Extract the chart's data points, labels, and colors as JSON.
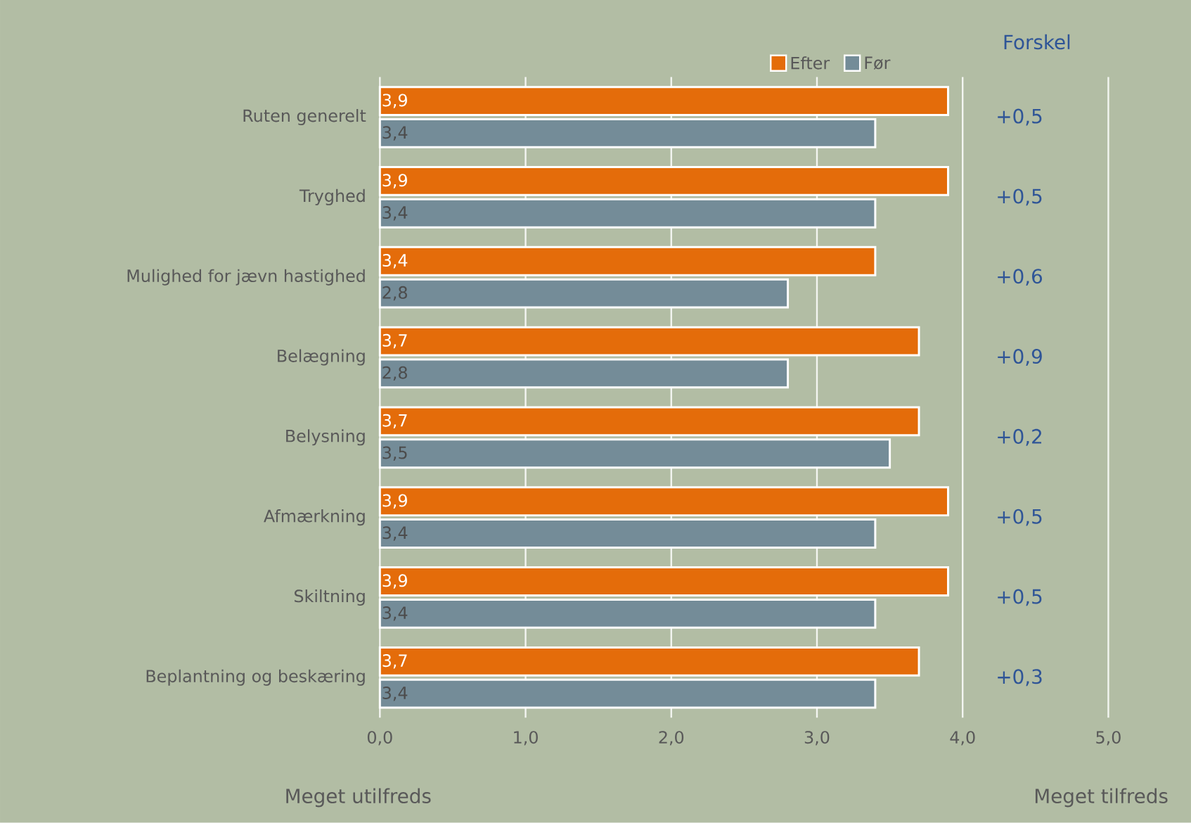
{
  "chart_data": {
    "type": "bar",
    "orientation": "horizontal",
    "categories": [
      "Ruten generelt",
      "Tryghed",
      "Mulighed for jævn hastighed",
      "Belægning",
      "Belysning",
      "Afmærkning",
      "Skiltning",
      "Beplantning og beskæring"
    ],
    "series": [
      {
        "name": "Efter",
        "color": "#e46c0a",
        "values": [
          3.9,
          3.9,
          3.4,
          3.7,
          3.7,
          3.9,
          3.9,
          3.7
        ],
        "value_labels": [
          "3,9",
          "3,9",
          "3,4",
          "3,7",
          "3,7",
          "3,9",
          "3,9",
          "3,7"
        ]
      },
      {
        "name": "Før",
        "color": "#748c98",
        "values": [
          3.4,
          3.4,
          2.8,
          2.8,
          3.5,
          3.4,
          3.4,
          3.4
        ],
        "value_labels": [
          "3,4",
          "3,4",
          "2,8",
          "2,8",
          "3,5",
          "3,4",
          "3,4",
          "3,4"
        ]
      }
    ],
    "xlim": [
      0,
      5
    ],
    "xticks": [
      {
        "value": 0,
        "label": "0,0"
      },
      {
        "value": 1,
        "label": "1,0"
      },
      {
        "value": 2,
        "label": "2,0"
      },
      {
        "value": 3,
        "label": "3,0"
      },
      {
        "value": 4,
        "label": "4,0"
      },
      {
        "value": 5,
        "label": "5,0"
      }
    ],
    "grid": "x",
    "legend": "top",
    "annotations": [
      "Forskel",
      "+0,5",
      "+0,5",
      "+0,6",
      "+0,9",
      "+0,2",
      "+0,5",
      "+0,5",
      "+0,3",
      "Meget utilfreds",
      "Meget tilfreds"
    ]
  }
}
